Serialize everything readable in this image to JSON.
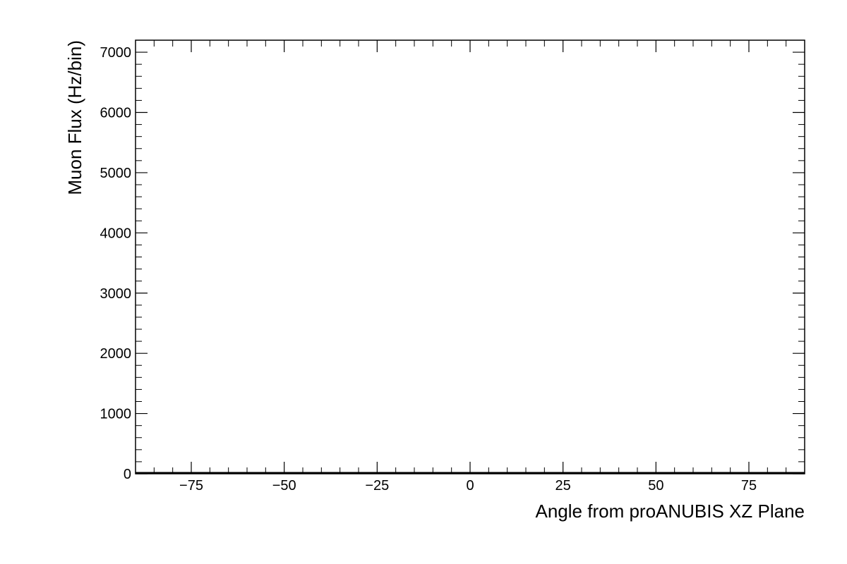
{
  "chart_data": {
    "type": "line",
    "title": "",
    "xlabel": "Angle from proANUBIS XZ Plane",
    "ylabel": "Muon Flux (Hz/bin)",
    "xlim": [
      -90,
      90
    ],
    "ylim": [
      0,
      7200
    ],
    "x_ticks": [
      -75,
      -50,
      -25,
      0,
      25,
      50,
      75
    ],
    "x_tick_labels": [
      "−75",
      "−50",
      "−25",
      "0",
      "25",
      "50",
      "75"
    ],
    "y_ticks": [
      0,
      1000,
      2000,
      3000,
      4000,
      5000,
      6000,
      7000
    ],
    "y_tick_labels": [
      "0",
      "1000",
      "2000",
      "3000",
      "4000",
      "5000",
      "6000",
      "7000"
    ],
    "x_minor_step": 5,
    "y_minor_step": 200,
    "grid": false,
    "series": [
      {
        "x": [
          -90,
          90
        ],
        "y": [
          0,
          0
        ],
        "color": "#000000"
      }
    ]
  }
}
